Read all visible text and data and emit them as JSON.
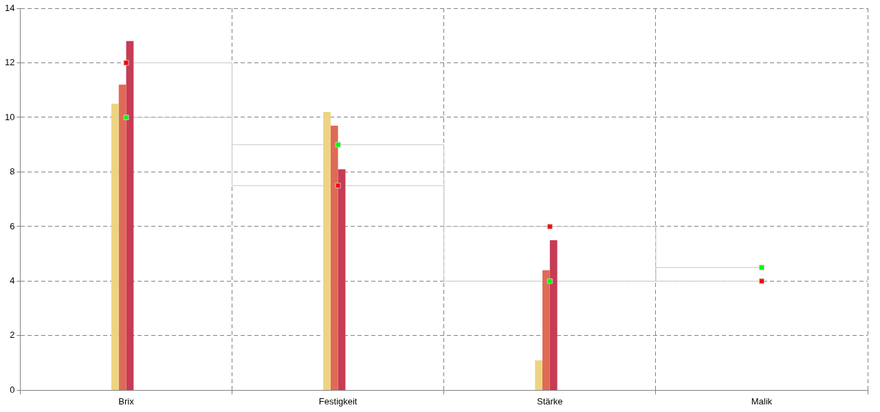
{
  "chart_data": {
    "type": "bar",
    "categories": [
      "Brix",
      "Festigkeit",
      "Stärke",
      "Malik"
    ],
    "series": [
      {
        "color": "#edd483",
        "values": [
          10.5,
          10.2,
          1.1,
          0
        ]
      },
      {
        "color": "#df6a55",
        "values": [
          11.2,
          9.7,
          4.4,
          0
        ]
      },
      {
        "color": "#c63c55",
        "values": [
          12.8,
          8.1,
          5.5,
          0
        ]
      },
      {
        "color": "#7a2a40",
        "values": [
          0,
          0,
          0,
          0
        ]
      },
      {
        "type": "scatter",
        "color": "#00ff00",
        "x": [
          "Brix",
          "Festigkeit",
          "Stärke",
          "Malik"
        ],
        "values": [
          10,
          9,
          4,
          4.5
        ]
      },
      {
        "type": "scatter",
        "color": "#ff0000",
        "x": [
          "Brix",
          "Festigkeit",
          "Stärke",
          "Malik"
        ],
        "values": [
          12,
          7.5,
          6,
          4
        ]
      },
      {
        "type": "step",
        "color": "#c8c8c8",
        "marker": "none",
        "values": [
          10,
          9,
          4,
          4.5
        ]
      },
      {
        "type": "step",
        "color": "#c8c8c8",
        "marker": "none",
        "values": [
          12,
          7.5,
          6,
          4
        ]
      }
    ],
    "ylim": [
      0,
      14
    ],
    "yticks": [
      0,
      2,
      4,
      6,
      8,
      10,
      12,
      14
    ],
    "grid": true,
    "legend": false,
    "marker": "square"
  }
}
